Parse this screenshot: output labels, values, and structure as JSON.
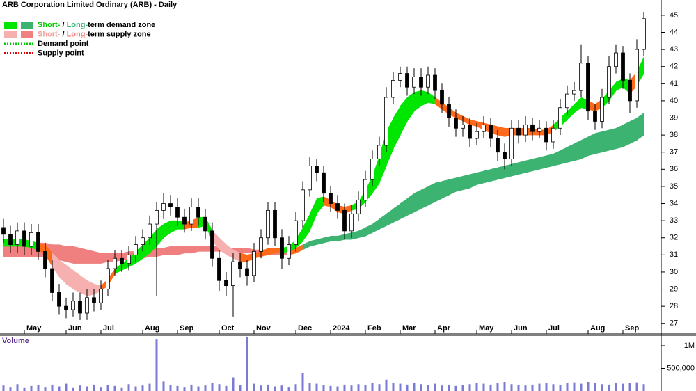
{
  "chart_data": {
    "type": "candlestick",
    "title": "ARB Corporation Limited Ordinary (ARB) - Daily",
    "categories": [
      null,
      null,
      null,
      "May",
      null,
      null,
      null,
      null,
      null,
      "Jun",
      null,
      null,
      null,
      null,
      "Jul",
      null,
      null,
      null,
      null,
      null,
      "Aug",
      null,
      null,
      null,
      null,
      "Sep",
      null,
      null,
      null,
      null,
      null,
      "Oct",
      null,
      null,
      null,
      null,
      "Nov",
      null,
      null,
      null,
      null,
      null,
      "Dec",
      null,
      null,
      null,
      null,
      "2024",
      null,
      null,
      null,
      null,
      "Feb",
      null,
      null,
      null,
      null,
      "Mar",
      null,
      null,
      null,
      null,
      "Apr",
      null,
      null,
      null,
      null,
      null,
      "May",
      null,
      null,
      null,
      null,
      "Jun",
      null,
      null,
      null,
      null,
      "Jul",
      null,
      null,
      null,
      null,
      null,
      "Aug",
      null,
      null,
      null,
      null,
      "Sep",
      null,
      null,
      null
    ],
    "open": [
      32.6,
      32.2,
      31.6,
      32.4,
      31.5,
      32.3,
      31.2,
      30.2,
      28.8,
      28.0,
      27.8,
      28.3,
      27.6,
      28.5,
      28.2,
      29.0,
      30.2,
      30.8,
      30.5,
      31.0,
      31.6,
      32.0,
      32.8,
      33.6,
      34.0,
      33.8,
      33.2,
      32.8,
      33.8,
      33.2,
      32.4,
      30.8,
      29.5,
      29.2,
      30.6,
      30.2,
      29.8,
      31.2,
      32.0,
      33.6,
      32.0,
      30.8,
      31.6,
      33.0,
      34.8,
      36.2,
      35.8,
      34.6,
      34.0,
      33.6,
      32.4,
      33.4,
      34.2,
      35.4,
      36.6,
      37.4,
      40.2,
      41.2,
      41.6,
      40.8,
      41.4,
      40.8,
      41.5,
      40.6,
      39.8,
      39.0,
      38.4,
      38.6,
      37.8,
      38.2,
      38.6,
      37.8,
      37.0,
      36.6,
      38.4,
      38.0,
      38.6,
      38.2,
      38.4,
      37.6,
      38.4,
      39.6,
      40.4,
      40.6,
      42.2,
      39.4,
      38.8,
      40.2,
      42.0,
      42.8,
      41.2,
      40.0,
      43.0
    ],
    "high": [
      33.1,
      32.7,
      32.9,
      32.9,
      32.8,
      32.8,
      31.7,
      30.7,
      29.3,
      28.5,
      28.8,
      28.8,
      29.0,
      29.0,
      29.5,
      30.7,
      31.3,
      31.3,
      31.5,
      32.1,
      32.5,
      33.3,
      34.1,
      34.6,
      34.5,
      34.3,
      33.7,
      34.3,
      34.3,
      33.7,
      32.9,
      31.3,
      30.0,
      31.1,
      31.1,
      30.7,
      31.7,
      32.5,
      34.1,
      34.1,
      32.5,
      32.1,
      33.5,
      35.3,
      36.7,
      36.6,
      36.2,
      35.0,
      34.5,
      34.0,
      33.9,
      34.7,
      35.9,
      37.1,
      37.9,
      40.8,
      41.7,
      42.0,
      42.0,
      41.9,
      41.9,
      42.0,
      41.9,
      41.0,
      40.2,
      39.5,
      39.1,
      39.0,
      38.7,
      39.1,
      39.0,
      38.3,
      37.5,
      38.9,
      38.9,
      39.1,
      39.0,
      38.9,
      38.8,
      38.9,
      40.1,
      40.9,
      41.1,
      43.3,
      42.6,
      39.8,
      40.7,
      42.6,
      43.3,
      43.2,
      41.6,
      43.6,
      45.2
    ],
    "low": [
      31.7,
      31.1,
      31.1,
      31.0,
      31.0,
      30.7,
      29.7,
      28.3,
      27.5,
      27.3,
      27.4,
      27.2,
      27.2,
      27.7,
      27.8,
      28.6,
      29.8,
      30.0,
      30.1,
      30.6,
      31.2,
      31.6,
      28.6,
      33.1,
      33.3,
      32.7,
      32.3,
      32.4,
      32.7,
      31.9,
      30.3,
      28.9,
      28.6,
      27.4,
      29.7,
      29.2,
      29.4,
      30.8,
      31.6,
      31.5,
      30.2,
      30.4,
      31.2,
      32.6,
      34.4,
      35.3,
      34.1,
      33.5,
      33.1,
      31.9,
      32.0,
      33.0,
      33.8,
      35.0,
      36.2,
      37.0,
      39.8,
      40.8,
      40.3,
      40.4,
      40.3,
      40.4,
      40.1,
      39.3,
      38.5,
      37.9,
      37.9,
      37.3,
      37.4,
      37.8,
      37.3,
      36.5,
      36.0,
      36.2,
      37.5,
      37.6,
      37.7,
      37.8,
      37.1,
      37.2,
      38.0,
      39.2,
      40.0,
      40.2,
      38.9,
      38.3,
      38.4,
      39.8,
      41.6,
      40.7,
      39.3,
      39.6,
      42.6
    ],
    "close": [
      32.2,
      31.6,
      32.4,
      31.5,
      32.3,
      31.2,
      30.2,
      28.8,
      28.0,
      27.8,
      28.3,
      27.6,
      28.5,
      28.2,
      29.0,
      30.2,
      30.8,
      30.5,
      31.0,
      31.6,
      32.0,
      32.8,
      33.6,
      34.0,
      33.8,
      33.2,
      32.8,
      33.8,
      33.2,
      32.4,
      30.8,
      29.5,
      29.2,
      30.6,
      30.2,
      29.8,
      31.2,
      32.0,
      33.6,
      32.0,
      30.8,
      31.6,
      33.0,
      34.8,
      36.2,
      35.8,
      34.6,
      34.0,
      33.6,
      32.4,
      33.4,
      34.2,
      35.4,
      36.6,
      37.4,
      40.2,
      41.2,
      41.6,
      40.8,
      41.4,
      40.8,
      41.5,
      40.6,
      39.8,
      39.0,
      38.4,
      38.6,
      37.8,
      38.2,
      38.6,
      37.8,
      37.0,
      36.6,
      38.4,
      38.0,
      38.6,
      38.2,
      38.4,
      37.6,
      38.4,
      39.6,
      40.4,
      40.6,
      42.2,
      39.4,
      38.8,
      40.2,
      42.0,
      42.8,
      41.2,
      40.0,
      43.0,
      44.8
    ],
    "candle_color": "#000000",
    "short_term_zone": {
      "upper": [
        31.9,
        31.9,
        31.9,
        31.9,
        31.8,
        31.7,
        31.6,
        31.1,
        30.7,
        30.4,
        30.1,
        29.8,
        29.5,
        29.3,
        29.2,
        29.6,
        30.2,
        30.5,
        30.8,
        31.2,
        31.6,
        32.0,
        32.5,
        32.8,
        33.0,
        33.0,
        32.9,
        33.0,
        33.2,
        33.2,
        32.4,
        32.0,
        31.6,
        31.3,
        31.1,
        31.0,
        31.1,
        31.2,
        31.4,
        31.4,
        31.4,
        31.5,
        31.9,
        32.6,
        33.4,
        34.3,
        34.4,
        34.2,
        33.9,
        33.8,
        33.9,
        34.1,
        34.8,
        35.6,
        36.8,
        38.2,
        39.0,
        39.7,
        40.2,
        40.5,
        40.6,
        40.5,
        40.2,
        39.9,
        39.6,
        39.3,
        39.1,
        38.9,
        38.8,
        38.7,
        38.6,
        38.5,
        38.4,
        38.4,
        38.4,
        38.4,
        38.4,
        38.3,
        38.3,
        38.6,
        39.0,
        39.4,
        39.8,
        40.2,
        40.0,
        39.8,
        40.1,
        40.6,
        41.1,
        41.3,
        41.2,
        41.7,
        42.6
      ],
      "lower": [
        31.5,
        31.5,
        31.5,
        31.5,
        31.4,
        31.3,
        31.0,
        30.3,
        29.7,
        29.3,
        29.0,
        28.8,
        28.6,
        28.7,
        28.9,
        29.2,
        29.9,
        30.1,
        30.3,
        30.5,
        30.8,
        31.1,
        31.5,
        32.0,
        32.3,
        32.5,
        32.5,
        32.6,
        32.6,
        32.7,
        31.8,
        31.3,
        31.0,
        30.8,
        30.6,
        30.6,
        30.8,
        30.9,
        31.0,
        31.1,
        31.1,
        31.2,
        31.4,
        31.8,
        32.4,
        33.4,
        33.9,
        33.8,
        33.5,
        33.4,
        33.6,
        33.7,
        34.1,
        34.6,
        35.2,
        36.2,
        37.2,
        38.0,
        38.8,
        39.4,
        39.7,
        39.9,
        39.8,
        39.5,
        39.2,
        39.0,
        38.8,
        38.6,
        38.5,
        38.3,
        38.1,
        38.0,
        37.9,
        38.0,
        38.0,
        38.0,
        38.0,
        38.0,
        38.0,
        38.2,
        38.5,
        38.9,
        39.3,
        39.6,
        39.5,
        39.4,
        39.6,
        40.0,
        40.6,
        40.8,
        40.4,
        40.9,
        41.6
      ],
      "colors": [
        "#00e600",
        "#00e600",
        "#00e600",
        "#00e600",
        "#00e600",
        "#ff6a1a",
        "#ff6a1a",
        "#f7b0b0",
        "#f7b0b0",
        "#f7b0b0",
        "#f7b0b0",
        "#f7b0b0",
        "#f7b0b0",
        "#f7b0b0",
        "#ff6a1a",
        "#ff6a1a",
        "#00e600",
        "#00e600",
        "#00e600",
        "#00e600",
        "#00e600",
        "#00e600",
        "#00e600",
        "#00e600",
        "#00e600",
        "#00e600",
        "#ff6a1a",
        "#ff6a1a",
        "#00e600",
        "#00e600",
        "#f7b0b0",
        "#f7b0b0",
        "#f7b0b0",
        "#f7b0b0",
        "#ff6a1a",
        "#ff6a1a",
        "#ff6a1a",
        "#ff6a1a",
        "#ff6a1a",
        "#ff6a1a",
        "#00e600",
        "#00e600",
        "#00e600",
        "#00e600",
        "#00e600",
        "#00e600",
        "#ff6a1a",
        "#ff6a1a",
        "#ff6a1a",
        "#ff6a1a",
        "#00e600",
        "#00e600",
        "#00e600",
        "#00e600",
        "#00e600",
        "#00e600",
        "#00e600",
        "#00e600",
        "#00e600",
        "#00e600",
        "#00e600",
        "#00e600",
        "#ff6a1a",
        "#ff6a1a",
        "#ff6a1a",
        "#ff6a1a",
        "#ff6a1a",
        "#ff6a1a",
        "#ff6a1a",
        "#ff6a1a",
        "#ff6a1a",
        "#ff6a1a",
        "#ff6a1a",
        "#ff6a1a",
        "#ff6a1a",
        "#ff6a1a",
        "#ff6a1a",
        "#ff6a1a",
        "#ff6a1a",
        "#00e600",
        "#00e600",
        "#00e600",
        "#00e600",
        "#00e600",
        "#ff6a1a",
        "#ff6a1a",
        "#00e600",
        "#00e600",
        "#00e600",
        "#00e600",
        "#ff6a1a",
        "#00e600",
        "#00e600"
      ]
    },
    "long_term_zone": {
      "upper": [
        31.8,
        31.8,
        31.8,
        31.8,
        31.8,
        31.7,
        31.7,
        31.6,
        31.6,
        31.5,
        31.5,
        31.4,
        31.3,
        31.2,
        31.1,
        31.1,
        31.1,
        31.1,
        31.2,
        31.2,
        31.3,
        31.3,
        31.4,
        31.4,
        31.5,
        31.5,
        31.5,
        31.5,
        31.5,
        31.5,
        31.5,
        31.5,
        31.4,
        31.4,
        31.4,
        31.4,
        31.3,
        31.3,
        31.3,
        31.3,
        31.3,
        31.3,
        31.4,
        31.6,
        31.8,
        31.9,
        32.0,
        32.1,
        32.1,
        32.2,
        32.3,
        32.4,
        32.6,
        32.8,
        33.1,
        33.4,
        33.7,
        34.0,
        34.3,
        34.6,
        34.8,
        35.0,
        35.2,
        35.3,
        35.4,
        35.5,
        35.6,
        35.7,
        35.8,
        35.9,
        36.0,
        36.1,
        36.2,
        36.3,
        36.4,
        36.5,
        36.6,
        36.7,
        36.8,
        36.9,
        37.1,
        37.3,
        37.5,
        37.7,
        37.9,
        38.1,
        38.2,
        38.3,
        38.4,
        38.6,
        38.8,
        39.0,
        39.3
      ],
      "lower": [
        30.9,
        30.9,
        30.9,
        30.9,
        30.9,
        30.9,
        30.9,
        30.8,
        30.7,
        30.6,
        30.5,
        30.5,
        30.5,
        30.5,
        30.5,
        30.6,
        30.6,
        30.7,
        30.7,
        30.8,
        30.8,
        30.9,
        30.9,
        31.0,
        31.0,
        31.0,
        31.1,
        31.1,
        31.2,
        31.2,
        31.2,
        31.2,
        31.2,
        31.1,
        31.1,
        31.1,
        31.1,
        31.0,
        31.0,
        31.0,
        31.0,
        31.0,
        31.1,
        31.3,
        31.5,
        31.6,
        31.7,
        31.8,
        31.8,
        31.9,
        31.9,
        32.0,
        32.1,
        32.3,
        32.5,
        32.7,
        32.9,
        33.1,
        33.3,
        33.5,
        33.7,
        33.9,
        34.1,
        34.3,
        34.5,
        34.7,
        34.8,
        34.9,
        35.1,
        35.2,
        35.3,
        35.4,
        35.5,
        35.6,
        35.7,
        35.8,
        35.9,
        36.0,
        36.1,
        36.2,
        36.3,
        36.4,
        36.5,
        36.6,
        36.8,
        36.9,
        37.0,
        37.1,
        37.2,
        37.3,
        37.5,
        37.7,
        38.0
      ],
      "colors": [
        "#f08080",
        "#f08080",
        "#f08080",
        "#f08080",
        "#f08080",
        "#f08080",
        "#f08080",
        "#f08080",
        "#f08080",
        "#f08080",
        "#f08080",
        "#f08080",
        "#f08080",
        "#f08080",
        "#f08080",
        "#f08080",
        "#f08080",
        "#f08080",
        "#f08080",
        "#f08080",
        "#f08080",
        "#f08080",
        "#f08080",
        "#f08080",
        "#f08080",
        "#f08080",
        "#f08080",
        "#f08080",
        "#f08080",
        "#f08080",
        "#f08080",
        "#f08080",
        "#f08080",
        "#f08080",
        "#f08080",
        "#f08080",
        "#f08080",
        "#f08080",
        "#f08080",
        "#f08080",
        "#f08080",
        "#ff6a1a",
        "#ff6a1a",
        "#3cb371",
        "#3cb371",
        "#3cb371",
        "#3cb371",
        "#3cb371",
        "#3cb371",
        "#3cb371",
        "#3cb371",
        "#3cb371",
        "#3cb371",
        "#3cb371",
        "#3cb371",
        "#3cb371",
        "#3cb371",
        "#3cb371",
        "#3cb371",
        "#3cb371",
        "#3cb371",
        "#3cb371",
        "#3cb371",
        "#3cb371",
        "#3cb371",
        "#3cb371",
        "#3cb371",
        "#3cb371",
        "#3cb371",
        "#3cb371",
        "#3cb371",
        "#3cb371",
        "#3cb371",
        "#3cb371",
        "#3cb371",
        "#3cb371",
        "#3cb371",
        "#3cb371",
        "#3cb371",
        "#3cb371",
        "#3cb371",
        "#3cb371",
        "#3cb371",
        "#3cb371",
        "#3cb371",
        "#3cb371",
        "#3cb371",
        "#3cb371",
        "#3cb371",
        "#3cb371",
        "#3cb371",
        "#3cb371",
        "#3cb371"
      ]
    },
    "ylim": [
      26.38,
      45.89
    ],
    "yticks": [
      27,
      28,
      29,
      30,
      31,
      32,
      33,
      34,
      35,
      36,
      37,
      38,
      39,
      40,
      41,
      42,
      43,
      44,
      45
    ],
    "volume_label": "Volume",
    "volume": [
      120000,
      90000,
      150000,
      80000,
      110000,
      130000,
      90000,
      140000,
      100000,
      160000,
      80000,
      120000,
      100000,
      140000,
      90000,
      130000,
      110000,
      80000,
      150000,
      100000,
      120000,
      160000,
      1150000,
      210000,
      130000,
      110000,
      90000,
      140000,
      100000,
      120000,
      170000,
      150000,
      110000,
      300000,
      130000,
      1200000,
      160000,
      120000,
      140000,
      100000,
      120000,
      90000,
      150000,
      400000,
      180000,
      160000,
      130000,
      110000,
      100000,
      140000,
      120000,
      150000,
      130000,
      170000,
      150000,
      250000,
      180000,
      160000,
      140000,
      170000,
      150000,
      130000,
      160000,
      120000,
      140000,
      110000,
      130000,
      150000,
      180000,
      160000,
      140000,
      170000,
      200000,
      150000,
      130000,
      120000,
      140000,
      160000,
      180000,
      150000,
      130000,
      170000,
      190000,
      160000,
      200000,
      180000,
      150000,
      140000,
      170000,
      160000,
      180000,
      190000,
      150000
    ],
    "volume_color": "#7b7bd6",
    "volume_ylim": [
      0,
      1230000
    ],
    "volume_yticks": [
      {
        "value": 1000000,
        "label": "1M"
      },
      {
        "value": 500000,
        "label": "500,000"
      }
    ],
    "legend": [
      {
        "swatches": [
          "#00e600",
          "#3cb371"
        ],
        "parts": [
          {
            "text": "Short-",
            "color": "#00cc00"
          },
          {
            "text": " / ",
            "color": "#000000"
          },
          {
            "text": "Long-",
            "color": "#3cb371"
          },
          {
            "text": "term demand zone",
            "color": "#000000"
          }
        ]
      },
      {
        "swatches": [
          "#f7b0b0",
          "#f08080"
        ],
        "parts": [
          {
            "text": "Short-",
            "color": "#f4a0a0"
          },
          {
            "text": " / ",
            "color": "#000000"
          },
          {
            "text": "Long-",
            "color": "#f08080"
          },
          {
            "text": "term supply zone",
            "color": "#000000"
          }
        ]
      },
      {
        "line_color": "#00cc00",
        "parts": [
          {
            "text": "Demand point",
            "color": "#000000"
          }
        ]
      },
      {
        "line_color": "#dd0000",
        "parts": [
          {
            "text": "Supply point",
            "color": "#000000"
          }
        ]
      }
    ]
  }
}
